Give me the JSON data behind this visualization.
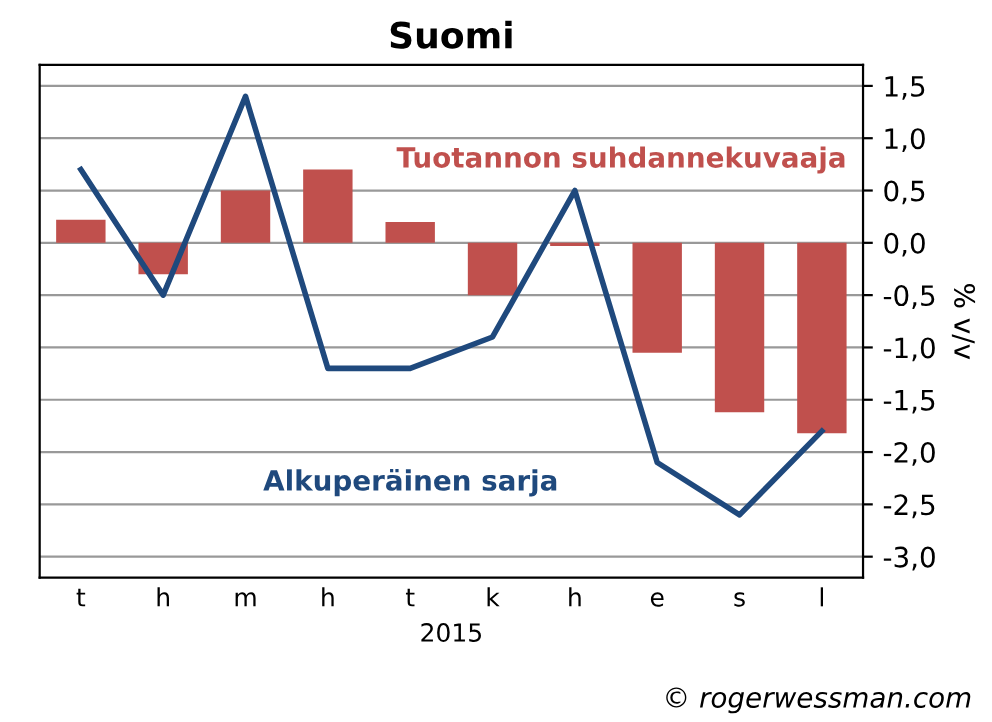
{
  "chart_data": {
    "type": "bar",
    "title": "Suomi",
    "xlabel": "2015",
    "ylabel": "% v/v",
    "categories": [
      "t",
      "h",
      "m",
      "h",
      "t",
      "k",
      "h",
      "e",
      "s",
      "l"
    ],
    "series": [
      {
        "name": "Tuotannon suhdannekuvaaja",
        "color": "#c0504d",
        "values": [
          0.22,
          -0.3,
          0.5,
          0.7,
          0.2,
          -0.5,
          -0.03,
          -1.05,
          -1.62,
          -1.82
        ]
      },
      {
        "name": "Alkuperäinen sarja",
        "type": "line",
        "color": "#1f497d",
        "values": [
          0.7,
          -0.5,
          1.4,
          -1.2,
          -1.2,
          -0.9,
          0.5,
          -2.1,
          -2.6,
          -1.8
        ]
      }
    ],
    "ylim": [
      -3.2,
      1.7
    ],
    "yticks": [
      {
        "value": -3.0,
        "label": "-3,0"
      },
      {
        "value": -2.5,
        "label": "-2,5"
      },
      {
        "value": -2.0,
        "label": "-2,0"
      },
      {
        "value": -1.5,
        "label": "-1,5"
      },
      {
        "value": -1.0,
        "label": "-1,0"
      },
      {
        "value": -0.5,
        "label": "-0,5"
      },
      {
        "value": 0.0,
        "label": "0,0"
      },
      {
        "value": 0.5,
        "label": "0,5"
      },
      {
        "value": 1.0,
        "label": "1,0"
      },
      {
        "value": 1.5,
        "label": "1,5"
      }
    ],
    "grid": "y",
    "marker": "none",
    "line_style": "solid",
    "legend": false,
    "annotations": [
      "© rogerwessman.com"
    ]
  }
}
